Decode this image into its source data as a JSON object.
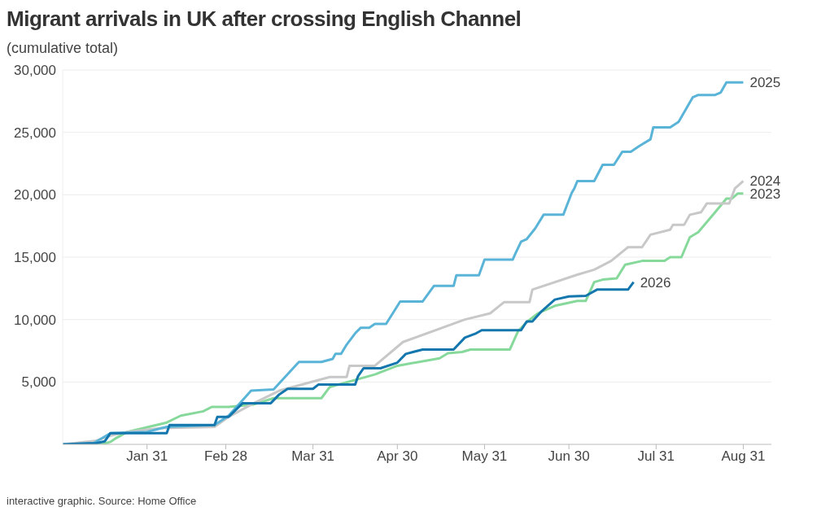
{
  "chart_data": {
    "type": "line",
    "title": "Migrant arrivals in UK after crossing English Channel",
    "subtitle": "(cumulative total)",
    "annotations": [
      "interactive graphic. Source: Home Office"
    ],
    "xlim": [
      "--01-01",
      "--09-10"
    ],
    "xticks": [
      {
        "value": "--01-31",
        "label": "Jan 31"
      },
      {
        "value": "--02-28",
        "label": "Feb 28"
      },
      {
        "value": "--03-31",
        "label": "Mar 31"
      },
      {
        "value": "--04-30",
        "label": "Apr 30"
      },
      {
        "value": "--05-31",
        "label": "May 31"
      },
      {
        "value": "--06-30",
        "label": "Jun 30"
      },
      {
        "value": "--07-31",
        "label": "Jul 31"
      },
      {
        "value": "--08-31",
        "label": "Aug 31"
      }
    ],
    "ylim": [
      0,
      30000
    ],
    "yticks": [
      {
        "value": 5000,
        "label": "5,000"
      },
      {
        "value": 10000,
        "label": "10,000"
      },
      {
        "value": 15000,
        "label": "15,000"
      },
      {
        "value": 20000,
        "label": "20,000"
      },
      {
        "value": 25000,
        "label": "25,000"
      },
      {
        "value": 30000,
        "label": "30,000"
      }
    ],
    "grid": "y",
    "series": [
      {
        "name": "2023",
        "color": "#86d99a",
        "x": [
          "--01-01",
          "--01-15",
          "--01-18",
          "--01-20",
          "--01-24",
          "--02-07",
          "--02-12",
          "--02-20",
          "--02-23",
          "--03-01",
          "--03-10",
          "--03-17",
          "--04-03",
          "--04-06",
          "--04-22",
          "--04-30",
          "--05-15",
          "--05-18",
          "--05-23",
          "--05-26",
          "--06-09",
          "--06-12",
          "--06-15",
          "--06-19",
          "--06-25",
          "--07-03",
          "--07-06",
          "--07-09",
          "--07-12",
          "--07-17",
          "--07-20",
          "--07-26",
          "--08-03",
          "--08-05",
          "--08-09",
          "--08-12",
          "--08-15",
          "--08-21",
          "--08-25",
          "--08-27",
          "--08-29",
          "--08-31"
        ],
        "values": [
          0,
          0,
          200,
          500,
          1000,
          1750,
          2300,
          2650,
          3000,
          3000,
          3200,
          3700,
          3700,
          4600,
          5600,
          6300,
          6900,
          7300,
          7400,
          7600,
          7600,
          9100,
          9800,
          10500,
          11100,
          11500,
          11500,
          13000,
          13200,
          13300,
          14400,
          14700,
          14700,
          15000,
          15000,
          16600,
          17000,
          18600,
          19700,
          19700,
          20100,
          20100
        ]
      },
      {
        "name": "2024",
        "color": "#c8c8c8",
        "x": [
          "--01-01",
          "--01-13",
          "--01-18",
          "--01-24",
          "--02-05",
          "--02-24",
          "--03-01",
          "--03-10",
          "--03-19",
          "--04-06",
          "--04-12",
          "--04-13",
          "--04-22",
          "--05-02",
          "--05-24",
          "--06-02",
          "--06-07",
          "--06-16",
          "--06-17",
          "--07-03",
          "--07-09",
          "--07-15",
          "--07-21",
          "--07-26",
          "--07-29",
          "--08-05",
          "--08-06",
          "--08-10",
          "--08-12",
          "--08-16",
          "--08-18",
          "--08-26",
          "--08-28",
          "--08-31"
        ],
        "values": [
          0,
          300,
          700,
          1000,
          1300,
          1400,
          2200,
          3300,
          4300,
          5400,
          5400,
          6300,
          6300,
          8200,
          10000,
          10500,
          11400,
          11400,
          12400,
          13600,
          14000,
          14700,
          15800,
          15800,
          16800,
          17200,
          17600,
          17600,
          18400,
          18600,
          19300,
          19300,
          20500,
          21100
        ]
      },
      {
        "name": "2025",
        "color": "#5ab4d8",
        "x": [
          "--01-01",
          "--01-12",
          "--01-18",
          "--01-31",
          "--02-07",
          "--02-24",
          "--03-01",
          "--03-05",
          "--03-09",
          "--03-17",
          "--03-26",
          "--04-03",
          "--04-07",
          "--04-08",
          "--04-10",
          "--04-12",
          "--04-15",
          "--04-17",
          "--04-20",
          "--04-22",
          "--04-26",
          "--05-01",
          "--05-09",
          "--05-13",
          "--05-20",
          "--05-21",
          "--05-29",
          "--05-31",
          "--06-10",
          "--06-11",
          "--06-13",
          "--06-15",
          "--06-18",
          "--06-21",
          "--06-28",
          "--07-01",
          "--07-02",
          "--07-03",
          "--07-09",
          "--07-12",
          "--07-16",
          "--07-19",
          "--07-22",
          "--07-25",
          "--07-29",
          "--07-30",
          "--08-05",
          "--08-08",
          "--08-13",
          "--08-15",
          "--08-21",
          "--08-23",
          "--08-25",
          "--08-31"
        ],
        "values": [
          0,
          100,
          900,
          1000,
          1400,
          1550,
          2300,
          3300,
          4300,
          4400,
          6600,
          6600,
          6850,
          7250,
          7250,
          8000,
          8900,
          9350,
          9350,
          9650,
          9650,
          11450,
          11450,
          12700,
          12700,
          13550,
          13550,
          14800,
          14800,
          15300,
          16250,
          16450,
          17300,
          18400,
          18400,
          20150,
          20550,
          21100,
          21100,
          22400,
          22400,
          23450,
          23450,
          23900,
          24450,
          25400,
          25400,
          25850,
          27800,
          28000,
          28000,
          28200,
          29000,
          29000
        ]
      },
      {
        "name": "2026",
        "color": "#1377ae",
        "x": [
          "--01-01",
          "--01-13",
          "--01-16",
          "--01-18",
          "--02-07",
          "--02-08",
          "--02-24",
          "--02-25",
          "--03-01",
          "--03-06",
          "--03-16",
          "--03-19",
          "--03-22",
          "--03-31",
          "--04-02",
          "--04-15",
          "--04-16",
          "--04-18",
          "--04-24",
          "--04-30",
          "--05-03",
          "--05-09",
          "--05-20",
          "--05-24",
          "--05-28",
          "--05-30",
          "--06-13",
          "--06-15",
          "--06-17",
          "--06-20",
          "--06-25",
          "--06-30",
          "--07-06",
          "--07-10",
          "--07-21",
          "--07-23"
        ],
        "values": [
          0,
          100,
          250,
          900,
          900,
          1550,
          1550,
          2200,
          2200,
          3300,
          3300,
          4000,
          4450,
          4450,
          4800,
          4800,
          5450,
          6100,
          6100,
          6550,
          7250,
          7600,
          7600,
          8550,
          8900,
          9150,
          9150,
          9850,
          9850,
          10600,
          11600,
          11850,
          11900,
          12400,
          12400,
          13000
        ]
      }
    ]
  }
}
